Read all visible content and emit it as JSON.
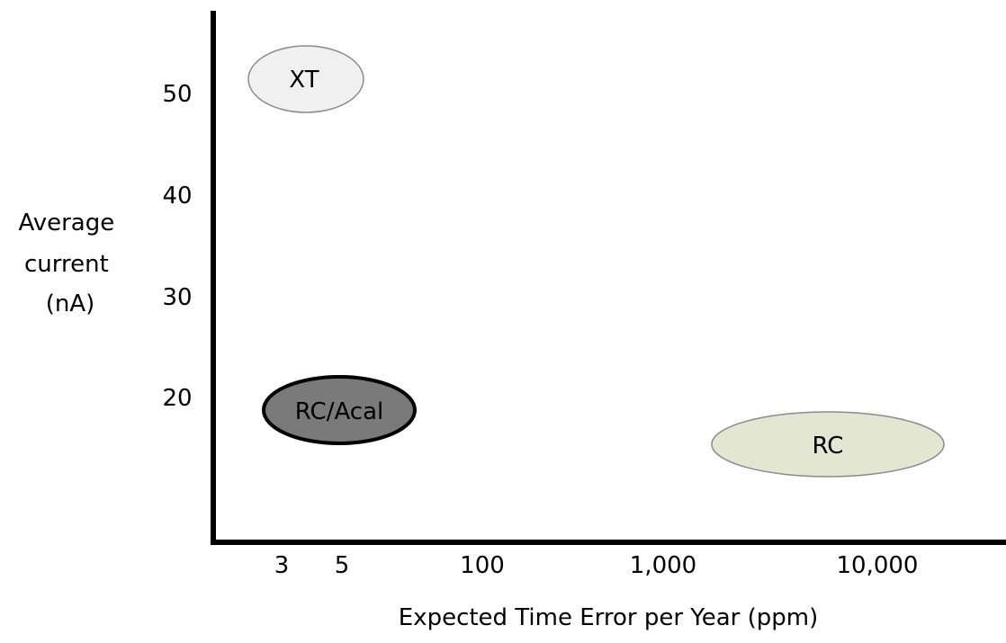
{
  "chart_data": {
    "type": "scatter",
    "title": "",
    "xlabel": "Expected Time Error per Year (ppm)",
    "ylabel": [
      "Average",
      "current",
      "(nA)"
    ],
    "x_ticks": [
      "3",
      "5",
      "100",
      "1,000",
      "10,000"
    ],
    "y_ticks": [
      20,
      30,
      40,
      50
    ],
    "grid": false,
    "regions": [
      {
        "label": "XT",
        "x_tick": "5",
        "y": 51.5,
        "fill": "#f0f0f0",
        "stroke": "#8a8a8a"
      },
      {
        "label": "RC/Acal",
        "x_tick": "5",
        "y": 18.3,
        "fill": "#7a7a7a",
        "stroke": "#000000"
      },
      {
        "label": "RC",
        "x_tick": "10,000",
        "y": 14.7,
        "fill": "#e2e6d3",
        "stroke": "#8a8a8a"
      }
    ]
  }
}
